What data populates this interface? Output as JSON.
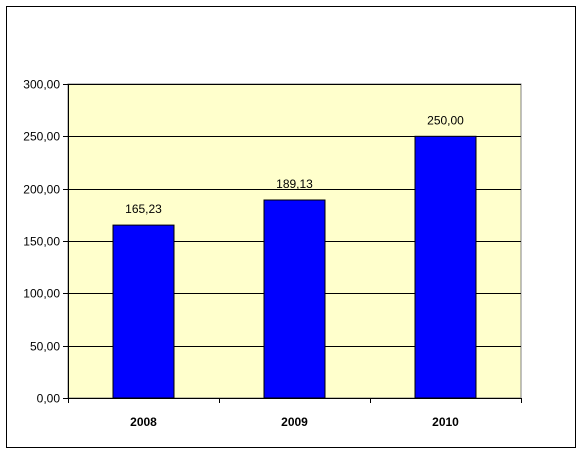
{
  "colors": {
    "plot_background": "#ffffcc",
    "bar_fill": "#0000ff",
    "bar_stroke": "#000000",
    "gridline": "#000000",
    "frame_border": "#000000"
  },
  "chart_data": {
    "type": "bar",
    "title": "",
    "xlabel": "",
    "ylabel": "",
    "categories": [
      "2008",
      "2009",
      "2010"
    ],
    "values": [
      165.23,
      189.13,
      250.0
    ],
    "data_labels": [
      "165,23",
      "189,13",
      "250,00"
    ],
    "ylim": [
      0,
      300
    ],
    "yticks": [
      0,
      50,
      100,
      150,
      200,
      250,
      300
    ],
    "ytick_labels": [
      "0,00",
      "50,00",
      "100,00",
      "150,00",
      "200,00",
      "250,00",
      "300,00"
    ],
    "grid": true,
    "legend": "none"
  }
}
